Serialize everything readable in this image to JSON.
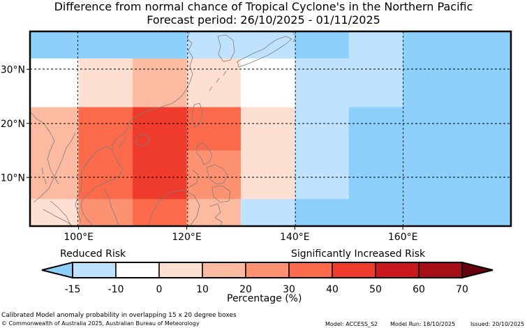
{
  "title": {
    "line1": "Difference from normal chance of Tropical Cyclone's in the Northern Pacific",
    "line2": "Forecast period: 26/10/2025 - 01/11/2025"
  },
  "map": {
    "lon_range": [
      91,
      180
    ],
    "lat_range": [
      1,
      37
    ],
    "x_ticks": [
      {
        "value": 100,
        "label": "100°E"
      },
      {
        "value": 120,
        "label": "120°E"
      },
      {
        "value": 140,
        "label": "140°E"
      },
      {
        "value": 160,
        "label": "160°E"
      }
    ],
    "y_ticks": [
      {
        "value": 30,
        "label": "30°N"
      },
      {
        "value": 20,
        "label": "20°N"
      },
      {
        "value": 10,
        "label": "10°N"
      }
    ],
    "grid_cells": [
      {
        "lon": [
          91,
          100
        ],
        "lat": [
          32,
          37
        ],
        "category": 0
      },
      {
        "lon": [
          100,
          110
        ],
        "lat": [
          32,
          37
        ],
        "category": 0
      },
      {
        "lon": [
          110,
          120
        ],
        "lat": [
          32,
          37
        ],
        "category": 0
      },
      {
        "lon": [
          120,
          130
        ],
        "lat": [
          32,
          37
        ],
        "category": 1
      },
      {
        "lon": [
          130,
          140
        ],
        "lat": [
          32,
          37
        ],
        "category": 1
      },
      {
        "lon": [
          140,
          150
        ],
        "lat": [
          32,
          37
        ],
        "category": 0
      },
      {
        "lon": [
          150,
          160
        ],
        "lat": [
          32,
          37
        ],
        "category": 1
      },
      {
        "lon": [
          160,
          180
        ],
        "lat": [
          32,
          37
        ],
        "category": 0
      },
      {
        "lon": [
          91,
          100
        ],
        "lat": [
          23,
          32
        ],
        "category": 2
      },
      {
        "lon": [
          100,
          110
        ],
        "lat": [
          23,
          32
        ],
        "category": 3
      },
      {
        "lon": [
          110,
          120
        ],
        "lat": [
          23,
          32
        ],
        "category": 4
      },
      {
        "lon": [
          120,
          130
        ],
        "lat": [
          23,
          32
        ],
        "category": 3
      },
      {
        "lon": [
          130,
          140
        ],
        "lat": [
          23,
          32
        ],
        "category": 2
      },
      {
        "lon": [
          140,
          150
        ],
        "lat": [
          23,
          32
        ],
        "category": 1
      },
      {
        "lon": [
          150,
          160
        ],
        "lat": [
          23,
          32
        ],
        "category": 1
      },
      {
        "lon": [
          160,
          180
        ],
        "lat": [
          23,
          32
        ],
        "category": 0
      },
      {
        "lon": [
          91,
          100
        ],
        "lat": [
          15,
          23
        ],
        "category": 4
      },
      {
        "lon": [
          100,
          110
        ],
        "lat": [
          15,
          23
        ],
        "category": 6
      },
      {
        "lon": [
          110,
          120
        ],
        "lat": [
          15,
          23
        ],
        "category": 7
      },
      {
        "lon": [
          120,
          130
        ],
        "lat": [
          15,
          23
        ],
        "category": 6
      },
      {
        "lon": [
          130,
          140
        ],
        "lat": [
          15,
          23
        ],
        "category": 3
      },
      {
        "lon": [
          140,
          150
        ],
        "lat": [
          15,
          23
        ],
        "category": 1
      },
      {
        "lon": [
          150,
          160
        ],
        "lat": [
          15,
          23
        ],
        "category": 0
      },
      {
        "lon": [
          160,
          180
        ],
        "lat": [
          15,
          23
        ],
        "category": 0
      },
      {
        "lon": [
          91,
          100
        ],
        "lat": [
          6,
          15
        ],
        "category": 4
      },
      {
        "lon": [
          100,
          110
        ],
        "lat": [
          6,
          15
        ],
        "category": 6
      },
      {
        "lon": [
          110,
          120
        ],
        "lat": [
          6,
          15
        ],
        "category": 7
      },
      {
        "lon": [
          120,
          130
        ],
        "lat": [
          6,
          15
        ],
        "category": 5
      },
      {
        "lon": [
          130,
          140
        ],
        "lat": [
          6,
          15
        ],
        "category": 3
      },
      {
        "lon": [
          140,
          150
        ],
        "lat": [
          6,
          15
        ],
        "category": 1
      },
      {
        "lon": [
          150,
          160
        ],
        "lat": [
          6,
          15
        ],
        "category": 0
      },
      {
        "lon": [
          160,
          180
        ],
        "lat": [
          6,
          15
        ],
        "category": 0
      },
      {
        "lon": [
          91,
          100
        ],
        "lat": [
          1,
          6
        ],
        "category": 3
      },
      {
        "lon": [
          100,
          110
        ],
        "lat": [
          1,
          6
        ],
        "category": 5
      },
      {
        "lon": [
          110,
          120
        ],
        "lat": [
          1,
          6
        ],
        "category": 6
      },
      {
        "lon": [
          120,
          130
        ],
        "lat": [
          1,
          6
        ],
        "category": 4
      },
      {
        "lon": [
          130,
          140
        ],
        "lat": [
          1,
          6
        ],
        "category": 1
      },
      {
        "lon": [
          140,
          150
        ],
        "lat": [
          1,
          6
        ],
        "category": 0
      },
      {
        "lon": [
          150,
          160
        ],
        "lat": [
          1,
          6
        ],
        "category": 0
      },
      {
        "lon": [
          160,
          180
        ],
        "lat": [
          1,
          6
        ],
        "category": 0
      }
    ]
  },
  "colorbar": {
    "label_left": "Reduced Risk",
    "label_right": "Significantly Increased Risk",
    "axis_label": "Percentage (%)",
    "bounds": [
      "-15",
      "-10",
      "0",
      "10",
      "20",
      "30",
      "40",
      "50",
      "60",
      "70"
    ],
    "colors": [
      "#bfe3ff",
      "#ffffff",
      "#fee0d2",
      "#fcbba1",
      "#fc9272",
      "#fb6a4a",
      "#ef3b2c",
      "#cb181d",
      "#a50f15"
    ],
    "under_color": "#8dd0fc",
    "over_color": "#67000d",
    "map_colors": [
      "#8dd0fc",
      "#bfe3ff",
      "#ffffff",
      "#fee0d2",
      "#fcbba1",
      "#fc9272",
      "#fb6a4a",
      "#ef3b2c"
    ]
  },
  "footer": {
    "caption": "Calibrated Model anomaly probability in overlapping 15 x 20 degree boxes",
    "copyright": "© Commonwealth of Australia 2025, Australian Bureau of Meteorology",
    "model": "Model: ACCESS_S2",
    "model_run": "Model Run: 18/10/2025",
    "issued": "Issued: 20/10/2025"
  }
}
